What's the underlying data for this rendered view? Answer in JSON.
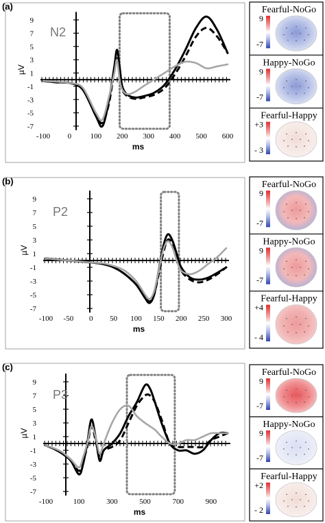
{
  "chart_data": [
    {
      "type": "line",
      "panel_label": "(a)",
      "component_label": "N2",
      "xlabel": "ms",
      "ylabel": "µV",
      "x_ticks": [
        -100,
        0,
        100,
        200,
        300,
        400,
        500,
        600
      ],
      "y_ticks": [
        9,
        7,
        5,
        3,
        1,
        -1,
        -3,
        -5,
        -7
      ],
      "xlim": [
        -100,
        600
      ],
      "ylim": [
        -8,
        10.5
      ],
      "window": [
        190,
        380
      ],
      "series": [
        {
          "style": "solid-black",
          "x": [
            -100,
            -50,
            0,
            50,
            100,
            125,
            150,
            170,
            180,
            190,
            200,
            220,
            250,
            280,
            320,
            360,
            400,
            440,
            480,
            520,
            560,
            600
          ],
          "y": [
            -0.2,
            -0.4,
            -0.5,
            -1.5,
            -5.5,
            -7,
            -3,
            2,
            4.5,
            2,
            -1,
            -2.3,
            -2.7,
            -2.5,
            -2,
            -0.8,
            1.5,
            4.5,
            7.8,
            9.5,
            7.5,
            4
          ]
        },
        {
          "style": "dashed-black",
          "x": [
            -100,
            -50,
            0,
            50,
            100,
            125,
            150,
            170,
            180,
            190,
            200,
            220,
            250,
            280,
            320,
            360,
            400,
            440,
            480,
            520,
            560,
            600
          ],
          "y": [
            -0.2,
            -0.4,
            -0.5,
            -1.3,
            -5.2,
            -6.5,
            -3.5,
            1.5,
            3.2,
            1,
            -1.5,
            -2.5,
            -2.9,
            -2.7,
            -2.3,
            -1.3,
            0.8,
            3.5,
            6.5,
            7.8,
            6.5,
            4
          ]
        },
        {
          "style": "solid-gray",
          "x": [
            -100,
            -50,
            0,
            50,
            100,
            125,
            150,
            170,
            180,
            190,
            200,
            220,
            250,
            280,
            320,
            360,
            400,
            440,
            480,
            520,
            560,
            600
          ],
          "y": [
            -0.2,
            -0.3,
            -0.5,
            -1.2,
            -5,
            -6,
            -2.5,
            1,
            3,
            0,
            -1.5,
            -2.2,
            -1.8,
            -1,
            0,
            1,
            2,
            2.7,
            2.5,
            1.7,
            2,
            2.3
          ]
        }
      ],
      "maps": [
        {
          "title": "Fearful-NoGo",
          "scale_max": "9",
          "scale_min": "-7",
          "tone": "blue"
        },
        {
          "title": "Happy-NoGo",
          "scale_max": "9",
          "scale_min": "-7",
          "tone": "blue"
        },
        {
          "title": "Fearful-Happy",
          "scale_max": "+3",
          "scale_min": "- 3",
          "tone": "pale"
        }
      ]
    },
    {
      "type": "line",
      "panel_label": "(b)",
      "component_label": "P2",
      "xlabel": "ms",
      "ylabel": "µV",
      "x_ticks": [
        -100,
        -50,
        0,
        50,
        100,
        150,
        200,
        250,
        300
      ],
      "y_ticks": [
        9,
        7,
        5,
        3,
        1,
        -1,
        -3,
        -5,
        -7
      ],
      "xlim": [
        -100,
        300
      ],
      "ylim": [
        -8,
        10.5
      ],
      "window": [
        155,
        195
      ],
      "series": [
        {
          "style": "solid-black",
          "x": [
            -100,
            -50,
            0,
            25,
            50,
            75,
            100,
            120,
            130,
            140,
            150,
            160,
            170,
            180,
            190,
            200,
            220,
            240,
            260,
            280,
            300
          ],
          "y": [
            0.3,
            0,
            -0.3,
            -0.5,
            -1,
            -2,
            -3.5,
            -5.5,
            -6.2,
            -5,
            -1.5,
            2,
            3.8,
            3,
            1,
            -1,
            -2.5,
            -2.8,
            -2.5,
            -1.8,
            -1
          ]
        },
        {
          "style": "dashed-black",
          "x": [
            -100,
            -50,
            0,
            25,
            50,
            75,
            100,
            120,
            130,
            140,
            150,
            160,
            170,
            180,
            190,
            200,
            220,
            240,
            260,
            280,
            300
          ],
          "y": [
            0.3,
            0,
            -0.3,
            -0.5,
            -1,
            -2,
            -3.5,
            -5.3,
            -6,
            -5,
            -2,
            1,
            3,
            2.5,
            0.5,
            -1.5,
            -2.8,
            -3.2,
            -2.8,
            -2,
            -1
          ]
        },
        {
          "style": "solid-gray",
          "x": [
            -100,
            -50,
            0,
            25,
            50,
            75,
            100,
            120,
            130,
            140,
            150,
            160,
            170,
            180,
            190,
            200,
            220,
            240,
            260,
            280,
            300
          ],
          "y": [
            0.3,
            0,
            -0.3,
            -0.4,
            -0.8,
            -1.5,
            -3,
            -5,
            -5.6,
            -4.5,
            -1.5,
            1.5,
            2.8,
            2,
            0,
            -1.5,
            -2,
            -1.5,
            -0.5,
            0.5,
            1.8
          ]
        }
      ],
      "maps": [
        {
          "title": "Fearful-NoGo",
          "scale_max": "9",
          "scale_min": "-7",
          "tone": "red-blue"
        },
        {
          "title": "Happy-NoGo",
          "scale_max": "9",
          "scale_min": "-7",
          "tone": "red-blue"
        },
        {
          "title": "Fearful-Happy",
          "scale_max": "+4",
          "scale_min": "- 4",
          "tone": "pink"
        }
      ]
    },
    {
      "type": "line",
      "panel_label": "(c)",
      "component_label": "P3",
      "xlabel": "ms",
      "ylabel": "µV",
      "x_ticks": [
        -100,
        100,
        300,
        500,
        700,
        900
      ],
      "y_ticks": [
        9,
        7,
        5,
        3,
        1,
        -1,
        -3,
        -5,
        -7
      ],
      "xlim": [
        -100,
        1000
      ],
      "ylim": [
        -8,
        10.5
      ],
      "window": [
        390,
        680
      ],
      "series": [
        {
          "style": "solid-black",
          "x": [
            -100,
            -50,
            0,
            50,
            100,
            125,
            150,
            175,
            200,
            225,
            250,
            300,
            350,
            400,
            450,
            500,
            530,
            560,
            600,
            650,
            700,
            750,
            800,
            850,
            900,
            950,
            1000
          ],
          "y": [
            -0.3,
            -0.8,
            -1.5,
            -2.5,
            -4.5,
            -3,
            0,
            3.5,
            1,
            -2.5,
            -1,
            0,
            1.5,
            4,
            6,
            8.5,
            8,
            6,
            3,
            0,
            -1,
            -1,
            -1.5,
            -1,
            0.5,
            1.5,
            1.5
          ]
        },
        {
          "style": "dashed-black",
          "x": [
            -100,
            -50,
            0,
            50,
            100,
            125,
            150,
            175,
            200,
            225,
            250,
            300,
            350,
            400,
            450,
            500,
            530,
            560,
            600,
            650,
            700,
            750,
            800,
            850,
            900,
            950,
            1000
          ],
          "y": [
            -0.3,
            -0.8,
            -1.5,
            -2.5,
            -4,
            -2.5,
            -0.5,
            2.5,
            0.5,
            -2,
            -1,
            -0.5,
            0.5,
            3,
            5.5,
            7,
            7,
            6,
            3.5,
            0,
            -0.5,
            -0.5,
            -0.5,
            -0.5,
            0.5,
            1,
            1.5
          ]
        },
        {
          "style": "solid-gray",
          "x": [
            -100,
            -50,
            0,
            50,
            100,
            125,
            150,
            175,
            200,
            225,
            250,
            300,
            350,
            400,
            450,
            500,
            530,
            560,
            600,
            650,
            700,
            750,
            800,
            850,
            900,
            950,
            1000
          ],
          "y": [
            -0.3,
            -0.7,
            -1.3,
            -2.3,
            -3.5,
            -2,
            0,
            2.5,
            1,
            -1.5,
            0,
            3,
            5,
            5.5,
            4,
            3,
            2.5,
            2,
            1,
            0,
            0,
            0.5,
            0.5,
            1,
            1.5,
            1.5,
            1.5
          ]
        }
      ],
      "maps": [
        {
          "title": "Fearful-NoGo",
          "scale_max": "9",
          "scale_min": "-7",
          "tone": "red"
        },
        {
          "title": "Happy-NoGo",
          "scale_max": "9",
          "scale_min": "-7",
          "tone": "pale-blue"
        },
        {
          "title": "Fearful-Happy",
          "scale_max": "+2",
          "scale_min": "- 2",
          "tone": "pale"
        }
      ]
    }
  ],
  "tones": {
    "blue": {
      "center": "#8a9ad6",
      "mid": "#b9c3e8",
      "edge": "#e7ebf6"
    },
    "pale": {
      "center": "#f2dcd6",
      "mid": "#f6e9e5",
      "edge": "#f9f1ef"
    },
    "red-blue": {
      "center": "#ee9a9a",
      "mid": "#f3b8b8",
      "edge": "#9fb0e3"
    },
    "pink": {
      "center": "#ee9b9b",
      "mid": "#f2b2b2",
      "edge": "#f7d3d3"
    },
    "red": {
      "center": "#e7585d",
      "mid": "#ef8a8d",
      "edge": "#f7cfd0"
    },
    "pale-blue": {
      "center": "#d9dff3",
      "mid": "#e6eaf7",
      "edge": "#f2f3f9"
    }
  },
  "colors": {
    "solid": "#000000",
    "gray": "#a6a6a6",
    "window": "#7f7f7f",
    "frame": "#a0a0a0"
  }
}
